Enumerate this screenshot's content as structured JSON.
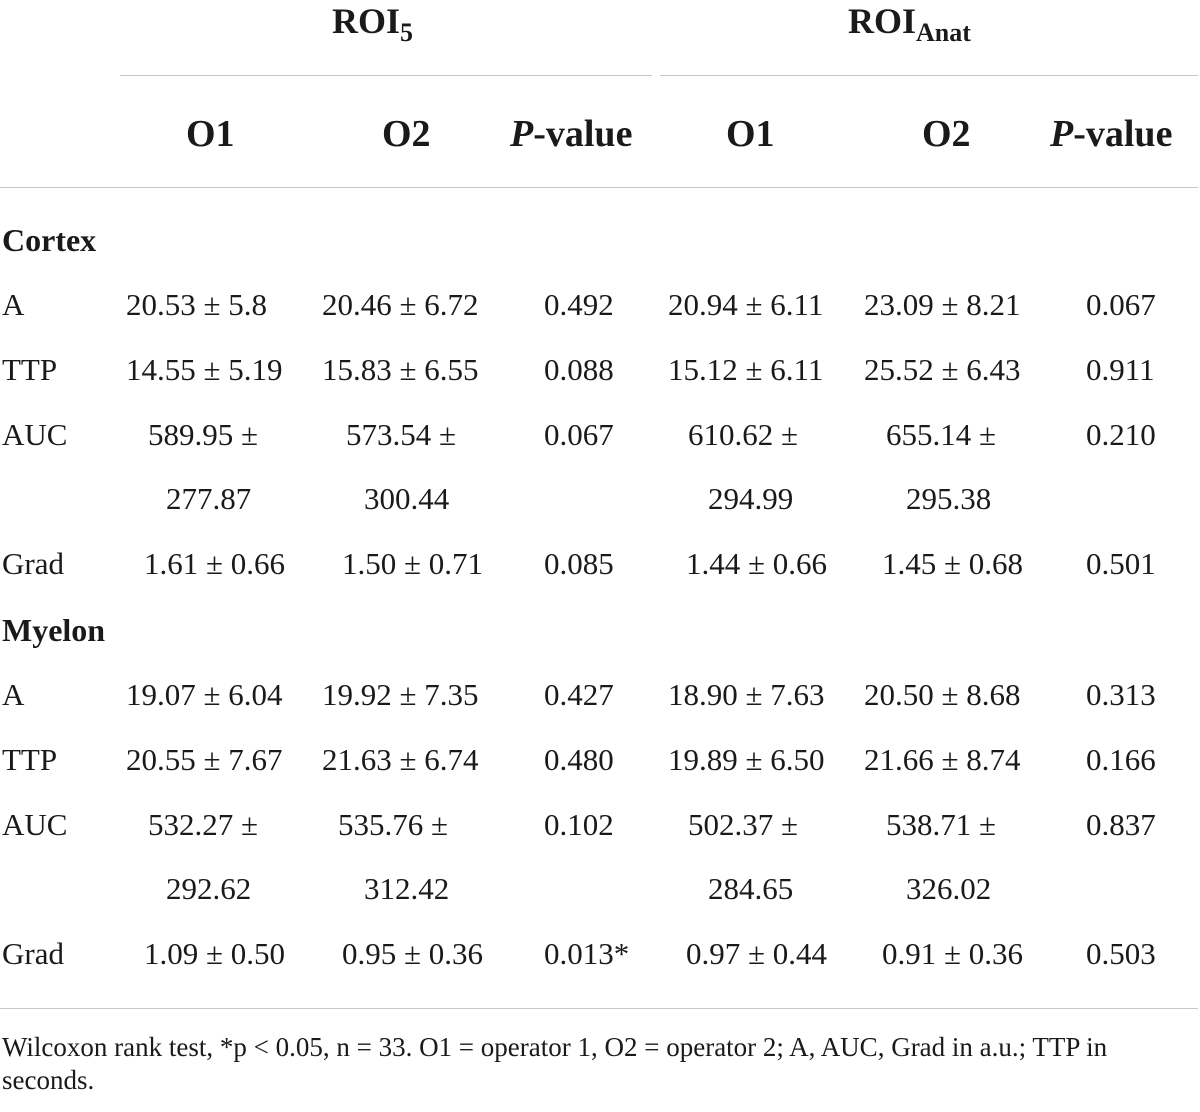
{
  "header": {
    "group1": {
      "main": "ROI",
      "sub": "5"
    },
    "group2": {
      "main": "ROI",
      "sub": "Anat"
    },
    "columns": {
      "o1": "O1",
      "o2": "O2",
      "p_italic": "P",
      "p_rest": "-value"
    }
  },
  "sections": [
    {
      "title": "Cortex",
      "rows": [
        {
          "label": "A",
          "roi5_o1": [
            "20.53 ± 5.8"
          ],
          "roi5_o2": [
            "20.46 ± 6.72"
          ],
          "roi5_p": "0.492",
          "anat_o1": [
            "20.94 ± 6.11"
          ],
          "anat_o2": [
            "23.09 ± 8.21"
          ],
          "anat_p": "0.067"
        },
        {
          "label": "TTP",
          "roi5_o1": [
            "14.55 ± 5.19"
          ],
          "roi5_o2": [
            "15.83 ± 6.55"
          ],
          "roi5_p": "0.088",
          "anat_o1": [
            "15.12 ± 6.11"
          ],
          "anat_o2": [
            "25.52 ± 6.43"
          ],
          "anat_p": "0.911"
        },
        {
          "label": "AUC",
          "roi5_o1": [
            "589.95 ±",
            "277.87"
          ],
          "roi5_o2": [
            "573.54 ±",
            "300.44"
          ],
          "roi5_p": "0.067",
          "anat_o1": [
            "610.62 ±",
            "294.99"
          ],
          "anat_o2": [
            "655.14 ±",
            "295.38"
          ],
          "anat_p": "0.210"
        },
        {
          "label": "Grad",
          "roi5_o1": [
            "1.61 ± 0.66"
          ],
          "roi5_o2": [
            "1.50 ± 0.71"
          ],
          "roi5_p": "0.085",
          "anat_o1": [
            "1.44 ± 0.66"
          ],
          "anat_o2": [
            "1.45 ± 0.68"
          ],
          "anat_p": "0.501"
        }
      ]
    },
    {
      "title": "Myelon",
      "rows": [
        {
          "label": "A",
          "roi5_o1": [
            "19.07 ± 6.04"
          ],
          "roi5_o2": [
            "19.92 ± 7.35"
          ],
          "roi5_p": "0.427",
          "anat_o1": [
            "18.90 ± 7.63"
          ],
          "anat_o2": [
            "20.50 ± 8.68"
          ],
          "anat_p": "0.313"
        },
        {
          "label": "TTP",
          "roi5_o1": [
            "20.55 ± 7.67"
          ],
          "roi5_o2": [
            "21.63 ± 6.74"
          ],
          "roi5_p": "0.480",
          "anat_o1": [
            "19.89 ± 6.50"
          ],
          "anat_o2": [
            "21.66 ± 8.74"
          ],
          "anat_p": "0.166"
        },
        {
          "label": "AUC",
          "roi5_o1": [
            "532.27 ±",
            "292.62"
          ],
          "roi5_o2": [
            "535.76 ±",
            "312.42"
          ],
          "roi5_p": "0.102",
          "anat_o1": [
            "502.37 ±",
            "284.65"
          ],
          "anat_o2": [
            "538.71 ±",
            "326.02"
          ],
          "anat_p": "0.837"
        },
        {
          "label": "Grad",
          "roi5_o1": [
            "1.09 ± 0.50"
          ],
          "roi5_o2": [
            "0.95 ± 0.36"
          ],
          "roi5_p": "0.013*",
          "anat_o1": [
            "0.97 ± 0.44"
          ],
          "anat_o2": [
            "0.91 ± 0.36"
          ],
          "anat_p": "0.503"
        }
      ]
    }
  ],
  "footnote": "Wilcoxon rank test, *p < 0.05, n = 33. O1 = operator 1, O2 = operator 2; A, AUC, Grad in a.u.; TTP in seconds."
}
